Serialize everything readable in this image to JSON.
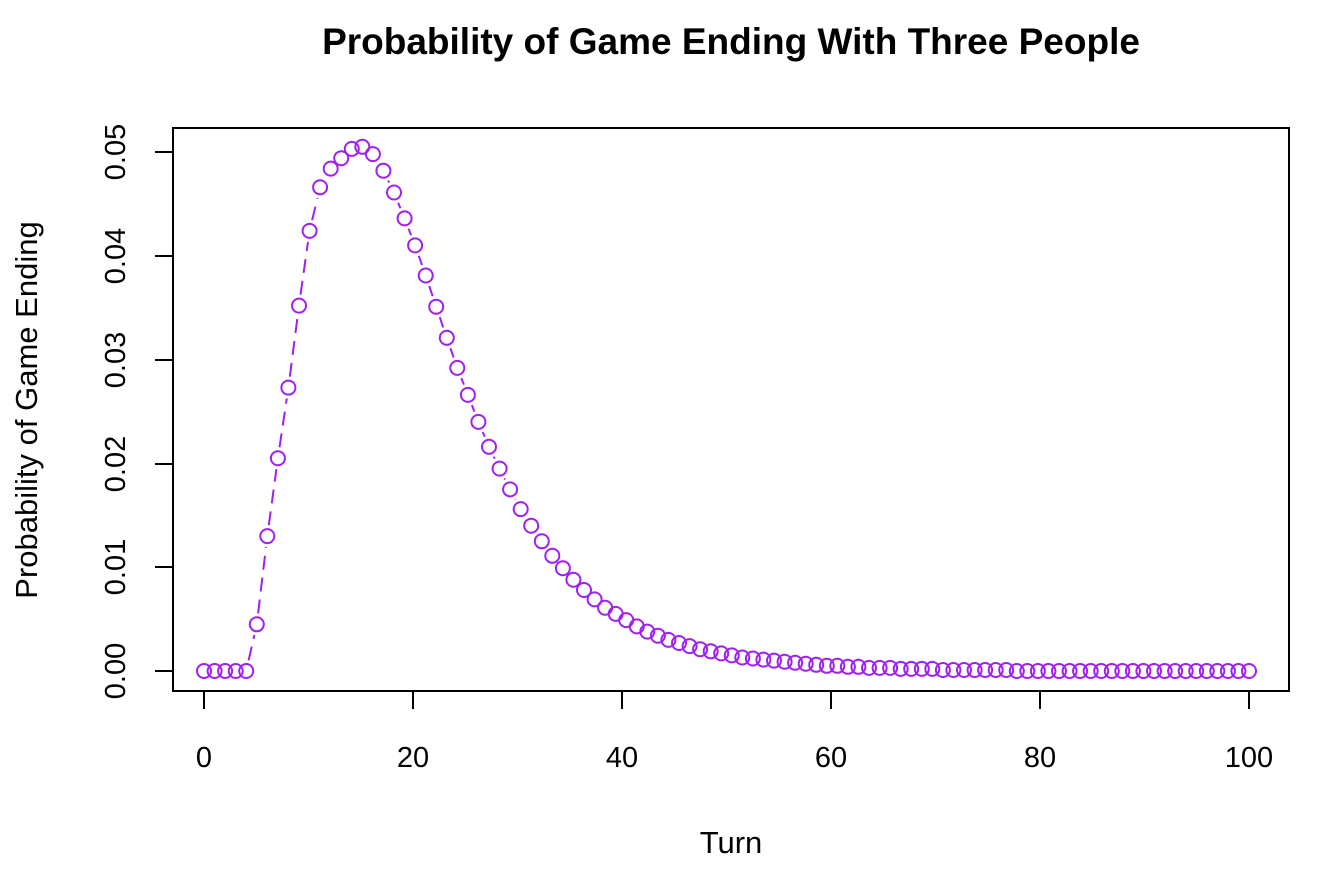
{
  "chart_data": {
    "type": "scatter",
    "title": "Probability of Game Ending With Three People",
    "xlabel": "Turn",
    "ylabel": "Probability of Game Ending",
    "xlim": [
      1,
      100
    ],
    "ylim": [
      0,
      0.05
    ],
    "x_ticks": [
      "0",
      "20",
      "40",
      "60",
      "80",
      "100"
    ],
    "y_ticks": [
      "0.00",
      "0.01",
      "0.02",
      "0.03",
      "0.04",
      "0.05"
    ],
    "grid": false,
    "legend": "none",
    "line_style": "dashed line connecting points, with gaps around markers",
    "marker": "open circle",
    "color": "#A020F0",
    "x": [
      1,
      2,
      3,
      4,
      5,
      6,
      7,
      8,
      9,
      10,
      11,
      12,
      13,
      14,
      15,
      16,
      17,
      18,
      19,
      20,
      21,
      22,
      23,
      24,
      25,
      26,
      27,
      28,
      29,
      30,
      31,
      32,
      33,
      34,
      35,
      36,
      37,
      38,
      39,
      40,
      41,
      42,
      43,
      44,
      45,
      46,
      47,
      48,
      49,
      50,
      51,
      52,
      53,
      54,
      55,
      56,
      57,
      58,
      59,
      60,
      61,
      62,
      63,
      64,
      65,
      66,
      67,
      68,
      69,
      70,
      71,
      72,
      73,
      74,
      75,
      76,
      77,
      78,
      79,
      80,
      81,
      82,
      83,
      84,
      85,
      86,
      87,
      88,
      89,
      90,
      91,
      92,
      93,
      94,
      95,
      96,
      97,
      98,
      99,
      100
    ],
    "y": [
      0,
      0,
      0,
      0,
      0,
      0.0045,
      0.013,
      0.0205,
      0.0273,
      0.0352,
      0.0424,
      0.0466,
      0.0484,
      0.0494,
      0.0503,
      0.0505,
      0.0498,
      0.0482,
      0.0461,
      0.0436,
      0.041,
      0.0381,
      0.0351,
      0.0321,
      0.0292,
      0.0266,
      0.024,
      0.0216,
      0.0195,
      0.0175,
      0.0156,
      0.014,
      0.0125,
      0.0111,
      0.0099,
      0.0088,
      0.0078,
      0.0069,
      0.0061,
      0.0055,
      0.0049,
      0.0043,
      0.0038,
      0.0034,
      0.003,
      0.0027,
      0.0024,
      0.0021,
      0.0019,
      0.0017,
      0.0015,
      0.0013,
      0.0012,
      0.0011,
      0.001,
      0.0009,
      0.0008,
      0.0007,
      0.0006,
      0.0005,
      0.0005,
      0.0004,
      0.0004,
      0.0003,
      0.0003,
      0.0003,
      0.0002,
      0.0002,
      0.0002,
      0.0002,
      0.0001,
      0.0001,
      0.0001,
      0.0001,
      0.0001,
      0.0001,
      0.0001,
      0,
      0,
      0,
      0,
      0,
      0,
      0,
      0,
      0,
      0,
      0,
      0,
      0,
      0,
      0,
      0,
      0,
      0,
      0,
      0,
      0,
      0,
      0
    ]
  }
}
